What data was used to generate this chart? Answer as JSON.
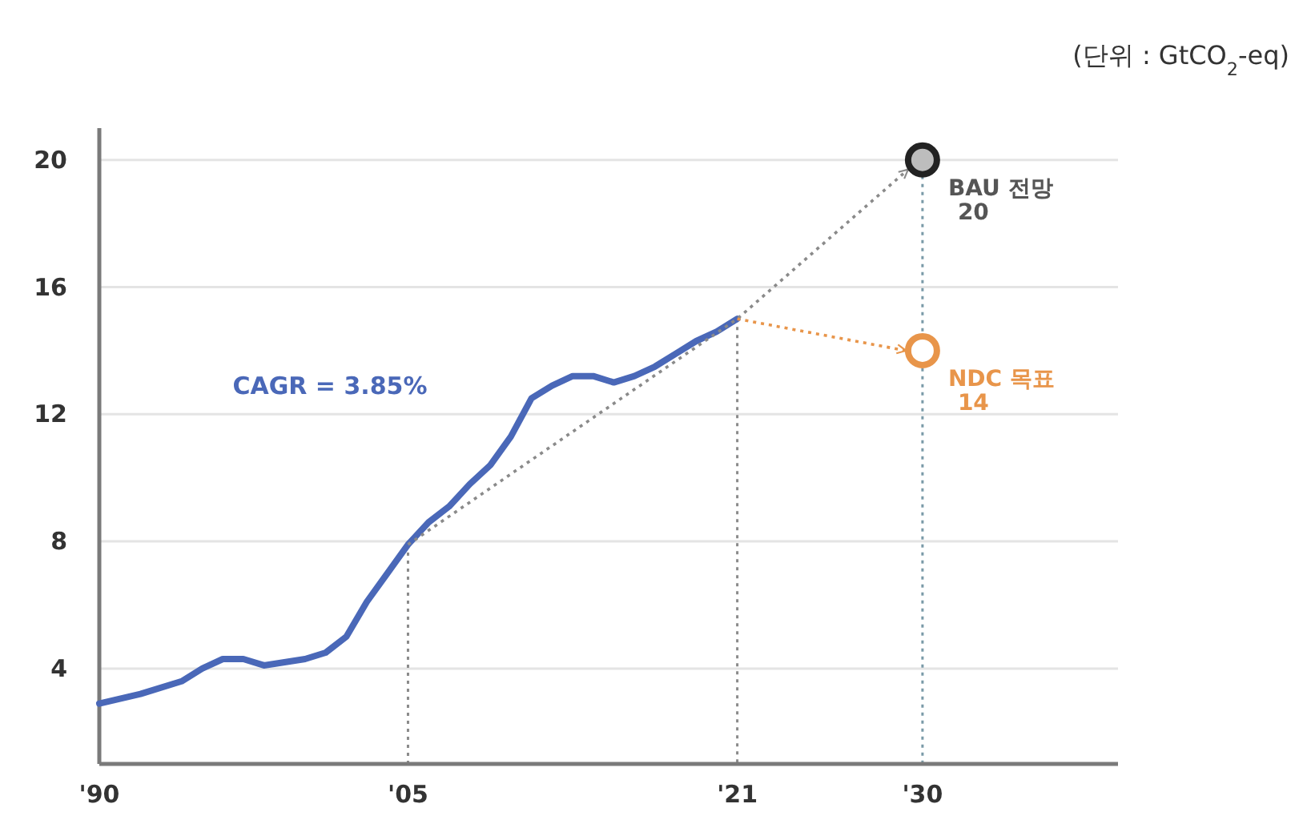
{
  "chart_data": {
    "type": "line",
    "annotations": [
      "(단위 : GtCO$_{2}$-eq)",
      "CAGR = 3.85%"
    ],
    "xlim": [
      1990,
      2039.5
    ],
    "ylim": [
      1,
      21
    ],
    "xticks": [
      {
        "value": 1990,
        "label": "'90"
      },
      {
        "value": 2005,
        "label": "'05"
      },
      {
        "value": 2021,
        "label": "'21"
      },
      {
        "value": 2030,
        "label": "'30"
      }
    ],
    "yticks": [
      4,
      8,
      12,
      16,
      20
    ],
    "grid": "y",
    "ref_lines": [
      {
        "axis": "x",
        "value": 2005,
        "color": "#8a8a8a",
        "line_style": "dotted"
      },
      {
        "axis": "x",
        "value": 2021,
        "color": "#8a8a8a",
        "line_style": "dotted"
      },
      {
        "axis": "x",
        "value": 2030,
        "color": "#7a9aa8",
        "line_style": "dotted"
      }
    ],
    "series": [
      {
        "color": "#4a68b8",
        "marker": "none",
        "line_style": "solid",
        "x": [
          1990,
          1992,
          1994,
          1995,
          1996,
          1997,
          1998,
          2000,
          2001,
          2002,
          2003,
          2004,
          2005,
          2006,
          2007,
          2008,
          2009,
          2010,
          2011,
          2012,
          2013,
          2014,
          2015,
          2016,
          2017,
          2018,
          2019,
          2020,
          2021
        ],
        "values": [
          2.9,
          3.2,
          3.6,
          4.0,
          4.3,
          4.3,
          4.1,
          4.3,
          4.5,
          5.0,
          6.1,
          7.0,
          7.9,
          8.6,
          9.1,
          9.8,
          10.4,
          11.3,
          12.5,
          12.9,
          13.2,
          13.2,
          13.0,
          13.2,
          13.5,
          13.9,
          14.3,
          14.6,
          15.0
        ]
      },
      {
        "color": "#8a8a8a",
        "marker": "none",
        "line_style": "dotted",
        "x": [
          2005,
          2021,
          2029.3
        ],
        "values": [
          7.9,
          15,
          19.7
        ]
      },
      {
        "color": "#e8954a",
        "marker": "none",
        "line_style": "dotted",
        "x": [
          2021,
          2029.2
        ],
        "values": [
          15,
          14
        ]
      },
      {
        "type": "scatter",
        "name": "BAU 전망",
        "color": "#222222",
        "marker": "circle",
        "x": [
          2030
        ],
        "values": [
          20
        ],
        "value_labels": [
          "20"
        ]
      },
      {
        "type": "scatter",
        "name": "NDC 목표",
        "color": "#e8954a",
        "marker": "circle",
        "x": [
          2030
        ],
        "values": [
          14
        ],
        "value_labels": [
          "14"
        ]
      }
    ]
  }
}
